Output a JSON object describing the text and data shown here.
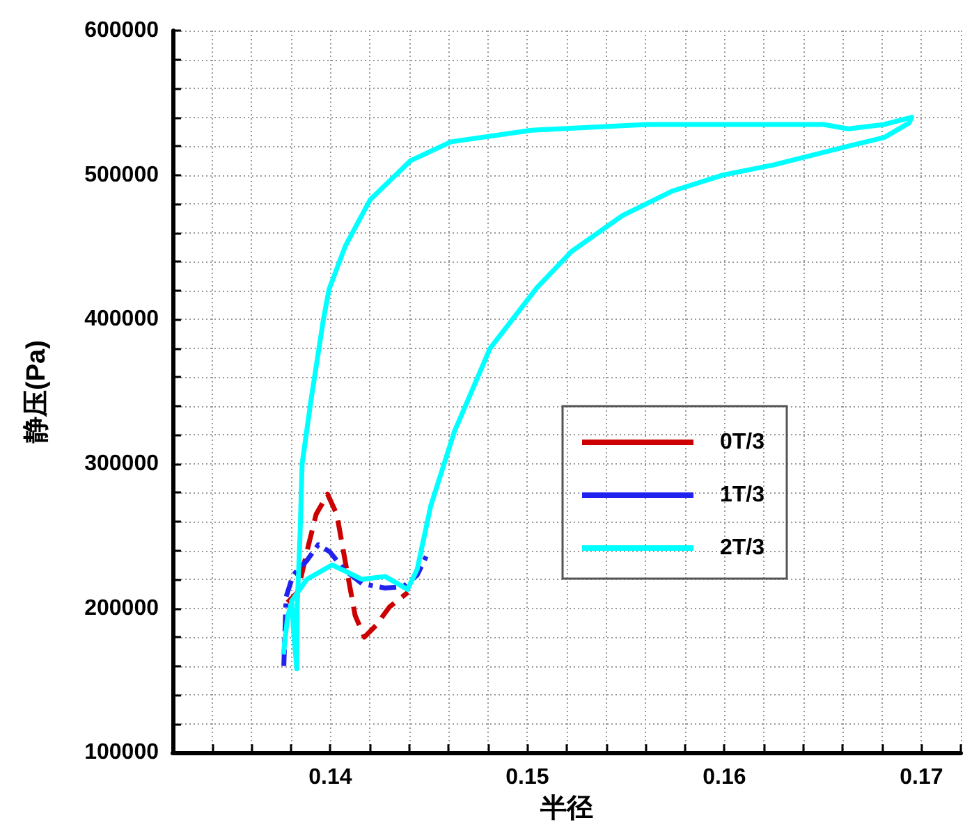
{
  "chart_data": {
    "type": "line",
    "xlabel": "半径",
    "ylabel": "静压(Pa)",
    "xlim": [
      0.132,
      0.172
    ],
    "xticks": [
      {
        "value": 0.132,
        "label": null
      },
      {
        "value": 0.134,
        "label": null
      },
      {
        "value": 0.136,
        "label": null
      },
      {
        "value": 0.138,
        "label": null
      },
      0.14,
      {
        "value": 0.142,
        "label": null
      },
      {
        "value": 0.144,
        "label": null
      },
      {
        "value": 0.146,
        "label": null
      },
      {
        "value": 0.148,
        "label": null
      },
      0.15,
      {
        "value": 0.152,
        "label": null
      },
      {
        "value": 0.154,
        "label": null
      },
      {
        "value": 0.156,
        "label": null
      },
      {
        "value": 0.158,
        "label": null
      },
      0.16,
      {
        "value": 0.162,
        "label": null
      },
      {
        "value": 0.164,
        "label": null
      },
      {
        "value": 0.166,
        "label": null
      },
      {
        "value": 0.168,
        "label": null
      },
      0.17,
      {
        "value": 0.172,
        "label": null
      }
    ],
    "ylim": [
      100000,
      600000
    ],
    "yticks": [
      100000,
      {
        "value": 120000,
        "label": null
      },
      {
        "value": 140000,
        "label": null
      },
      {
        "value": 160000,
        "label": null
      },
      {
        "value": 180000,
        "label": null
      },
      200000,
      {
        "value": 220000,
        "label": null
      },
      {
        "value": 240000,
        "label": null
      },
      {
        "value": 260000,
        "label": null
      },
      {
        "value": 280000,
        "label": null
      },
      300000,
      {
        "value": 320000,
        "label": null
      },
      {
        "value": 340000,
        "label": null
      },
      {
        "value": 360000,
        "label": null
      },
      {
        "value": 380000,
        "label": null
      },
      400000,
      {
        "value": 420000,
        "label": null
      },
      {
        "value": 440000,
        "label": null
      },
      {
        "value": 460000,
        "label": null
      },
      {
        "value": 480000,
        "label": null
      },
      500000,
      {
        "value": 520000,
        "label": null
      },
      {
        "value": 540000,
        "label": null
      },
      {
        "value": 560000,
        "label": null
      },
      {
        "value": 580000,
        "label": null
      },
      600000
    ],
    "grid": true,
    "legend": "right",
    "marker": "none",
    "series": [
      {
        "name": "0T/3",
        "color": "#cc0000",
        "line_style": "dashed",
        "x": [
          0.13783,
          0.13834,
          0.13881,
          0.13928,
          0.13986,
          0.14033,
          0.14079,
          0.14126,
          0.14173,
          0.14231,
          0.14301,
          0.14394
        ],
        "values": [
          204000,
          211000,
          239000,
          265000,
          279000,
          265000,
          230000,
          195000,
          180000,
          188000,
          201000,
          211000
        ]
      },
      {
        "name": "1T/3",
        "color": "#2222ee",
        "line_style": "dashdot",
        "x": [
          0.13764,
          0.13776,
          0.13811,
          0.13881,
          0.13939,
          0.13998,
          0.14068,
          0.14161,
          0.14278,
          0.14371,
          0.14441,
          0.14487
        ],
        "values": [
          160000,
          208000,
          223000,
          233000,
          244000,
          239000,
          227000,
          217000,
          214000,
          215000,
          223000,
          236000
        ]
      },
      {
        "name": "2T/3",
        "color": "#00ffff",
        "line_style": "solid",
        "x": [
          0.13762,
          0.13783,
          0.13804,
          0.13815,
          0.1383,
          0.13832,
          0.13846,
          0.13857,
          0.13902,
          0.13965,
          0.13994,
          0.14077,
          0.14203,
          0.14408,
          0.14613,
          0.15021,
          0.15608,
          0.16503,
          0.16629,
          0.16811,
          0.16951,
          0.16937,
          0.16811,
          0.16629,
          0.16249,
          0.15993,
          0.15738,
          0.15483,
          0.15224,
          0.15049,
          0.14811,
          0.14629,
          0.1451,
          0.14441,
          0.14392,
          0.14278,
          0.14161,
          0.14009,
          0.13881,
          0.13799
        ],
        "values": [
          168000,
          194000,
          204000,
          182000,
          158000,
          201000,
          249000,
          300000,
          344000,
          400000,
          421000,
          451000,
          483000,
          510000,
          523000,
          531000,
          535000,
          535000,
          532000,
          535000,
          540000,
          536000,
          526000,
          520000,
          507000,
          500000,
          489000,
          472000,
          447000,
          422000,
          380000,
          322000,
          271000,
          227000,
          213000,
          222000,
          220000,
          230000,
          220000,
          204000
        ]
      }
    ]
  }
}
